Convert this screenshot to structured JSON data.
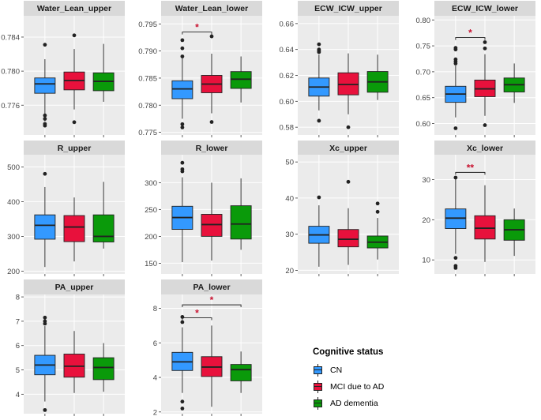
{
  "chart_data": {
    "type": "boxplot",
    "groups": [
      "CN",
      "MCI due to AD",
      "AD dementia"
    ],
    "group_colors": [
      "#3399FF",
      "#E8113C",
      "#0A9A0A"
    ],
    "legend": {
      "title": "Cognitive status",
      "items": [
        "CN",
        "MCI due to AD",
        "AD dementia"
      ],
      "placement": "bottom-right"
    },
    "panels": [
      {
        "title": "Water_Lean_upper",
        "ylim": [
          0.7725,
          0.7865
        ],
        "yticks": [
          0.776,
          0.78,
          0.784
        ],
        "ytick_labels": [
          "0.776",
          "0.780",
          "0.784"
        ],
        "boxes": [
          {
            "lower": 0.7741,
            "q1": 0.7774,
            "median": 0.7785,
            "q3": 0.7792,
            "upper": 0.7814,
            "outliers": [
              0.7831,
              0.7748,
              0.7744,
              0.7738,
              0.7736
            ]
          },
          {
            "lower": 0.7755,
            "q1": 0.7778,
            "median": 0.7789,
            "q3": 0.7799,
            "upper": 0.7826,
            "outliers": [
              0.7842,
              0.774
            ]
          },
          {
            "lower": 0.7764,
            "q1": 0.7777,
            "median": 0.7788,
            "q3": 0.7798,
            "upper": 0.7832,
            "outliers": []
          }
        ],
        "significance": []
      },
      {
        "title": "Water_Lean_lower",
        "ylim": [
          0.7745,
          0.7965
        ],
        "yticks": [
          0.775,
          0.78,
          0.785,
          0.79,
          0.795
        ],
        "ytick_labels": [
          "0.775",
          "0.780",
          "0.785",
          "0.790",
          "0.795"
        ],
        "boxes": [
          {
            "lower": 0.7775,
            "q1": 0.7812,
            "median": 0.783,
            "q3": 0.7845,
            "upper": 0.7893,
            "outliers": [
              0.792,
              0.7905,
              0.789,
              0.7765,
              0.7759
            ]
          },
          {
            "lower": 0.7785,
            "q1": 0.7823,
            "median": 0.7839,
            "q3": 0.7855,
            "upper": 0.7895,
            "outliers": [
              0.7927,
              0.7769
            ]
          },
          {
            "lower": 0.7805,
            "q1": 0.7831,
            "median": 0.7848,
            "q3": 0.7862,
            "upper": 0.789,
            "outliers": []
          }
        ],
        "significance": [
          {
            "from": 0,
            "to": 1,
            "label": "*",
            "y": 0.7935
          }
        ]
      },
      {
        "title": "ECW_ICW_upper",
        "ylim": [
          0.574,
          0.666
        ],
        "yticks": [
          0.58,
          0.6,
          0.62,
          0.64,
          0.66
        ],
        "ytick_labels": [
          "0.58",
          "0.60",
          "0.62",
          "0.64",
          "0.66"
        ],
        "boxes": [
          {
            "lower": 0.593,
            "q1": 0.604,
            "median": 0.611,
            "q3": 0.618,
            "upper": 0.636,
            "outliers": [
              0.644,
              0.64,
              0.639,
              0.638,
              0.585
            ]
          },
          {
            "lower": 0.59,
            "q1": 0.605,
            "median": 0.613,
            "q3": 0.622,
            "upper": 0.637,
            "outliers": [
              0.58
            ]
          },
          {
            "lower": 0.601,
            "q1": 0.607,
            "median": 0.615,
            "q3": 0.623,
            "upper": 0.636,
            "outliers": []
          }
        ],
        "significance": []
      },
      {
        "title": "ECW_ICW_lower",
        "ylim": [
          0.578,
          0.808
        ],
        "yticks": [
          0.6,
          0.65,
          0.7,
          0.75,
          0.8
        ],
        "ytick_labels": [
          "0.60",
          "0.65",
          "0.70",
          "0.75",
          "0.80"
        ],
        "boxes": [
          {
            "lower": 0.612,
            "q1": 0.641,
            "median": 0.657,
            "q3": 0.672,
            "upper": 0.712,
            "outliers": [
              0.746,
              0.743,
              0.724,
              0.72,
              0.716,
              0.591
            ]
          },
          {
            "lower": 0.615,
            "q1": 0.652,
            "median": 0.667,
            "q3": 0.684,
            "upper": 0.734,
            "outliers": [
              0.757,
              0.745,
              0.597
            ]
          },
          {
            "lower": 0.64,
            "q1": 0.661,
            "median": 0.675,
            "q3": 0.688,
            "upper": 0.716,
            "outliers": []
          }
        ],
        "significance": [
          {
            "from": 0,
            "to": 1,
            "label": "*",
            "y": 0.766
          }
        ]
      },
      {
        "title": "R_upper",
        "ylim": [
          192,
          535
        ],
        "yticks": [
          200,
          300,
          400,
          500
        ],
        "ytick_labels": [
          "200",
          "300",
          "400",
          "500"
        ],
        "boxes": [
          {
            "lower": 212,
            "q1": 292,
            "median": 332,
            "q3": 362,
            "upper": 442,
            "outliers": [
              480
            ]
          },
          {
            "lower": 228,
            "q1": 285,
            "median": 327,
            "q3": 360,
            "upper": 412,
            "outliers": []
          },
          {
            "lower": 265,
            "q1": 284,
            "median": 300,
            "q3": 362,
            "upper": 457,
            "outliers": []
          }
        ],
        "significance": []
      },
      {
        "title": "R_lower",
        "ylim": [
          130,
          352
        ],
        "yticks": [
          150,
          200,
          250,
          300
        ],
        "ytick_labels": [
          "150",
          "200",
          "250",
          "300"
        ],
        "boxes": [
          {
            "lower": 152,
            "q1": 213,
            "median": 235,
            "q3": 256,
            "upper": 310,
            "outliers": [
              337,
              325,
              321
            ]
          },
          {
            "lower": 155,
            "q1": 200,
            "median": 222,
            "q3": 241,
            "upper": 300,
            "outliers": []
          },
          {
            "lower": 175,
            "q1": 195,
            "median": 223,
            "q3": 257,
            "upper": 308,
            "outliers": []
          }
        ],
        "significance": []
      },
      {
        "title": "Xc_upper",
        "ylim": [
          19,
          52
        ],
        "yticks": [
          20,
          30,
          40,
          50
        ],
        "ytick_labels": [
          "20",
          "30",
          "40",
          "50"
        ],
        "boxes": [
          {
            "lower": 21,
            "q1": 27.5,
            "median": 29.8,
            "q3": 32.2,
            "upper": 38,
            "outliers": [
              40.2
            ]
          },
          {
            "lower": 21.5,
            "q1": 26.5,
            "median": 28.6,
            "q3": 31.3,
            "upper": 37.2,
            "outliers": [
              44.5
            ]
          },
          {
            "lower": 23,
            "q1": 26.2,
            "median": 27.8,
            "q3": 29.5,
            "upper": 34.5,
            "outliers": [
              38.5,
              36.2
            ]
          }
        ],
        "significance": []
      },
      {
        "title": "Xc_lower",
        "ylim": [
          6.5,
          36.2
        ],
        "yticks": [
          10,
          20,
          30
        ],
        "ytick_labels": [
          "10",
          "20",
          "30"
        ],
        "boxes": [
          {
            "lower": 11.5,
            "q1": 17.8,
            "median": 20.4,
            "q3": 22.7,
            "upper": 30.2,
            "outliers": [
              30.5,
              10.5,
              8.5,
              8.0
            ]
          },
          {
            "lower": 9.5,
            "q1": 15.2,
            "median": 17.9,
            "q3": 21.0,
            "upper": 28.6,
            "outliers": []
          },
          {
            "lower": 11,
            "q1": 14.9,
            "median": 17.5,
            "q3": 20.0,
            "upper": 22.8,
            "outliers": []
          }
        ],
        "significance": [
          {
            "from": 0,
            "to": 1,
            "label": "**",
            "y": 31.8
          }
        ]
      },
      {
        "title": "PA_upper",
        "ylim": [
          3.2,
          8.1
        ],
        "yticks": [
          4,
          5,
          6,
          7,
          8
        ],
        "ytick_labels": [
          "4",
          "5",
          "6",
          "7",
          "8"
        ],
        "boxes": [
          {
            "lower": 3.7,
            "q1": 4.8,
            "median": 5.2,
            "q3": 5.6,
            "upper": 6.8,
            "outliers": [
              7.15,
              7.0,
              6.9,
              3.35
            ]
          },
          {
            "lower": 4.05,
            "q1": 4.7,
            "median": 5.15,
            "q3": 5.65,
            "upper": 6.6,
            "outliers": []
          },
          {
            "lower": 4.1,
            "q1": 4.6,
            "median": 5.1,
            "q3": 5.5,
            "upper": 6.1,
            "outliers": []
          }
        ],
        "significance": []
      },
      {
        "title": "PA_lower",
        "ylim": [
          1.9,
          8.8
        ],
        "yticks": [
          2,
          4,
          6,
          8
        ],
        "ytick_labels": [
          "2",
          "4",
          "6",
          "8"
        ],
        "boxes": [
          {
            "lower": 3.1,
            "q1": 4.4,
            "median": 4.9,
            "q3": 5.45,
            "upper": 6.9,
            "outliers": [
              7.5,
              7.2,
              2.6,
              2.2
            ]
          },
          {
            "lower": 2.3,
            "q1": 4.05,
            "median": 4.6,
            "q3": 5.2,
            "upper": 7.0,
            "outliers": []
          },
          {
            "lower": 3.1,
            "q1": 3.8,
            "median": 4.45,
            "q3": 4.75,
            "upper": 5.5,
            "outliers": []
          }
        ],
        "significance": [
          {
            "from": 0,
            "to": 1,
            "label": "*",
            "y": 7.45
          },
          {
            "from": 0,
            "to": 2,
            "label": "*",
            "y": 8.2
          }
        ]
      }
    ]
  }
}
